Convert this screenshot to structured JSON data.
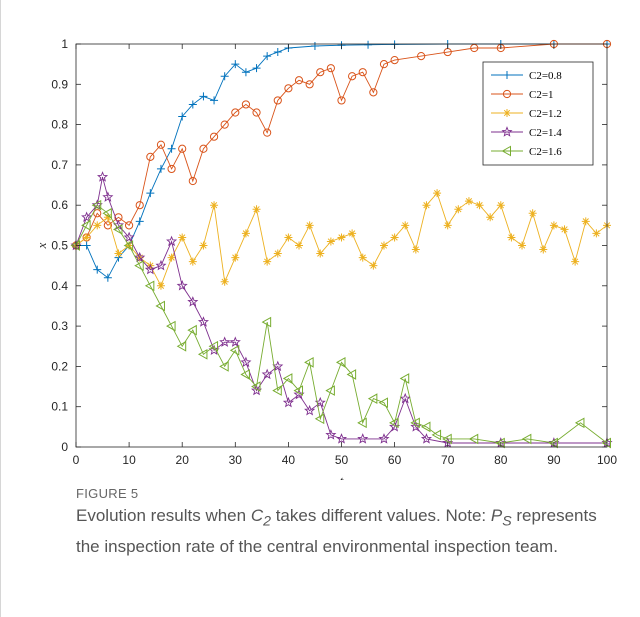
{
  "caption": {
    "figure_label": "FIGURE 5",
    "text_before": "Evolution results when ",
    "c_var": "C",
    "c_sub": "2",
    "text_middle": " takes different values. Note: ",
    "p_var": "P",
    "p_sub": "S",
    "text_after": " represents the inspection rate of the central environmental inspection team."
  },
  "chart_data": {
    "type": "line",
    "title": "",
    "xlabel": "t",
    "ylabel": "x",
    "xlim": [
      0,
      100
    ],
    "ylim": [
      0,
      1
    ],
    "x_ticks": [
      "0",
      "10",
      "20",
      "30",
      "40",
      "50",
      "60",
      "70",
      "80",
      "90",
      "100"
    ],
    "y_ticks": [
      "0",
      "0.1",
      "0.2",
      "0.3",
      "0.4",
      "0.5",
      "0.6",
      "0.7",
      "0.8",
      "0.9",
      "1"
    ],
    "grid": false,
    "legend_position": "top-right",
    "series": [
      {
        "name": "C2=0.8",
        "color": "#0072BD",
        "marker": "plus",
        "x": [
          0,
          2,
          4,
          6,
          8,
          10,
          12,
          14,
          16,
          18,
          20,
          22,
          24,
          26,
          28,
          30,
          32,
          34,
          36,
          38,
          40,
          45,
          50,
          55,
          60,
          70,
          80,
          90,
          100
        ],
        "values": [
          0.5,
          0.5,
          0.44,
          0.42,
          0.47,
          0.5,
          0.56,
          0.63,
          0.69,
          0.74,
          0.82,
          0.85,
          0.87,
          0.86,
          0.92,
          0.95,
          0.93,
          0.94,
          0.97,
          0.98,
          0.99,
          0.995,
          0.997,
          0.998,
          0.999,
          1.0,
          1.0,
          1.0,
          1.0
        ]
      },
      {
        "name": "C2=1",
        "color": "#D95319",
        "marker": "circle",
        "x": [
          0,
          2,
          4,
          6,
          8,
          10,
          12,
          14,
          16,
          18,
          20,
          22,
          24,
          26,
          28,
          30,
          32,
          34,
          36,
          38,
          40,
          42,
          44,
          46,
          48,
          50,
          52,
          54,
          56,
          58,
          60,
          65,
          70,
          75,
          80,
          90,
          100
        ],
        "values": [
          0.5,
          0.52,
          0.58,
          0.55,
          0.57,
          0.55,
          0.6,
          0.72,
          0.75,
          0.69,
          0.74,
          0.66,
          0.74,
          0.77,
          0.8,
          0.83,
          0.85,
          0.83,
          0.78,
          0.86,
          0.89,
          0.91,
          0.9,
          0.93,
          0.94,
          0.86,
          0.92,
          0.93,
          0.88,
          0.95,
          0.96,
          0.97,
          0.98,
          0.99,
          0.99,
          1.0,
          1.0
        ]
      },
      {
        "name": "C2=1.2",
        "color": "#EDB120",
        "marker": "asterisk",
        "x": [
          0,
          2,
          4,
          6,
          8,
          10,
          12,
          14,
          16,
          18,
          20,
          22,
          24,
          26,
          28,
          30,
          32,
          34,
          36,
          38,
          40,
          42,
          44,
          46,
          48,
          50,
          52,
          54,
          56,
          58,
          60,
          62,
          64,
          66,
          68,
          70,
          72,
          74,
          76,
          78,
          80,
          82,
          84,
          86,
          88,
          90,
          92,
          94,
          96,
          98,
          100
        ],
        "values": [
          0.5,
          0.52,
          0.55,
          0.57,
          0.48,
          0.5,
          0.47,
          0.45,
          0.4,
          0.47,
          0.52,
          0.46,
          0.5,
          0.6,
          0.41,
          0.47,
          0.53,
          0.59,
          0.46,
          0.48,
          0.52,
          0.5,
          0.55,
          0.48,
          0.51,
          0.52,
          0.53,
          0.47,
          0.45,
          0.5,
          0.52,
          0.55,
          0.49,
          0.6,
          0.63,
          0.55,
          0.59,
          0.61,
          0.6,
          0.57,
          0.6,
          0.52,
          0.5,
          0.58,
          0.49,
          0.55,
          0.54,
          0.46,
          0.56,
          0.53,
          0.55
        ]
      },
      {
        "name": "C2=1.4",
        "color": "#7E2F8E",
        "marker": "star",
        "x": [
          0,
          2,
          4,
          5,
          6,
          8,
          10,
          12,
          14,
          16,
          18,
          20,
          22,
          24,
          26,
          28,
          30,
          32,
          34,
          36,
          38,
          40,
          42,
          44,
          46,
          48,
          50,
          54,
          58,
          60,
          62,
          64,
          66,
          70,
          80,
          90,
          100
        ],
        "values": [
          0.5,
          0.57,
          0.6,
          0.67,
          0.62,
          0.55,
          0.52,
          0.47,
          0.44,
          0.45,
          0.51,
          0.4,
          0.36,
          0.31,
          0.24,
          0.26,
          0.26,
          0.21,
          0.14,
          0.18,
          0.2,
          0.11,
          0.13,
          0.09,
          0.11,
          0.03,
          0.02,
          0.02,
          0.02,
          0.05,
          0.12,
          0.05,
          0.02,
          0.01,
          0.01,
          0.01,
          0.01
        ]
      },
      {
        "name": "C2=1.6",
        "color": "#77AC30",
        "marker": "triangle-left",
        "x": [
          0,
          2,
          4,
          6,
          8,
          10,
          12,
          14,
          16,
          18,
          20,
          22,
          24,
          26,
          28,
          30,
          32,
          34,
          36,
          38,
          40,
          42,
          44,
          46,
          48,
          50,
          52,
          54,
          56,
          58,
          60,
          62,
          64,
          66,
          68,
          70,
          75,
          80,
          85,
          90,
          95,
          100
        ],
        "values": [
          0.5,
          0.55,
          0.6,
          0.58,
          0.54,
          0.5,
          0.45,
          0.4,
          0.35,
          0.3,
          0.25,
          0.29,
          0.23,
          0.25,
          0.2,
          0.24,
          0.18,
          0.15,
          0.31,
          0.14,
          0.17,
          0.14,
          0.21,
          0.07,
          0.14,
          0.21,
          0.18,
          0.06,
          0.12,
          0.11,
          0.06,
          0.17,
          0.06,
          0.05,
          0.03,
          0.02,
          0.02,
          0.01,
          0.02,
          0.01,
          0.06,
          0.01
        ]
      }
    ]
  }
}
